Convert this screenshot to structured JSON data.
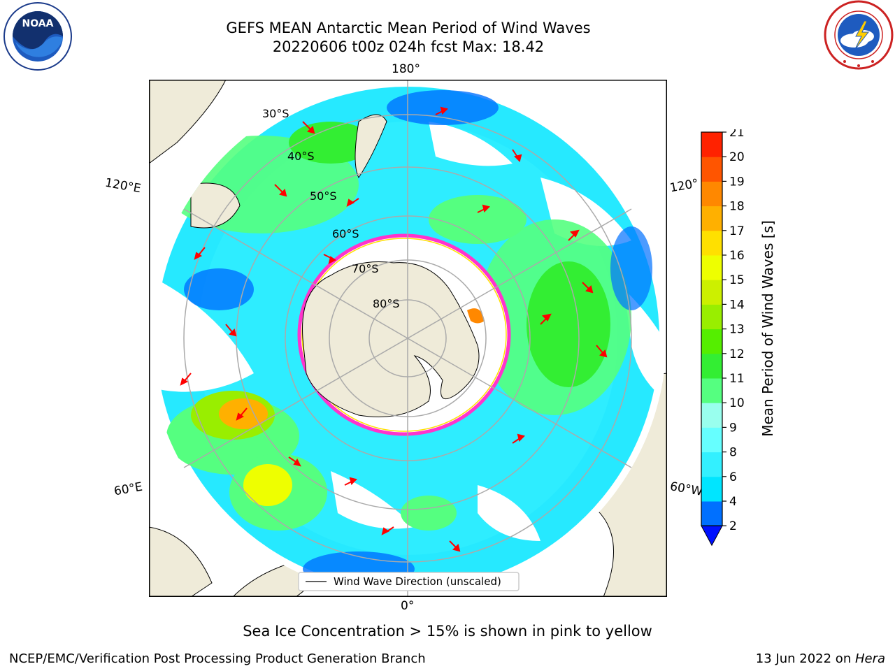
{
  "header": {
    "title_line1": "GEFS MEAN Antarctic Mean Period of Wind Waves",
    "title_line2": "20220606 t00z 024h fcst   Max: 18.42"
  },
  "map": {
    "projection": "south polar stereographic",
    "lon_labels": {
      "top": "180°",
      "bottom": "0°",
      "left_upper": "120°E",
      "left_lower": "60°E",
      "right_upper": "120°",
      "right_lower": "60°W"
    },
    "lat_labels": [
      "30°S",
      "40°S",
      "50°S",
      "60°S",
      "70°S",
      "80°S"
    ],
    "colors": {
      "land": "#efebd9",
      "ocean_no_data": "#ffffff",
      "arrows": "#ff0000",
      "sea_ice": "#ff33cc"
    },
    "legend_label": "Wind Wave Direction (unscaled)"
  },
  "colorbar": {
    "title": "Mean Period of Wind Waves [s]",
    "ticks": [
      "2",
      "4",
      "6",
      "8",
      "9",
      "10",
      "11",
      "12",
      "13",
      "14",
      "15",
      "16",
      "17",
      "18",
      "19",
      "20",
      "21"
    ],
    "colors": [
      "#0070ff",
      "#00e5ff",
      "#33f0ff",
      "#66ffff",
      "#99ffee",
      "#55ff80",
      "#33ee33",
      "#55ee00",
      "#99ee00",
      "#ccf000",
      "#eeff00",
      "#ffe000",
      "#ffb000",
      "#ff8800",
      "#ff5500",
      "#ff2200"
    ],
    "extend_color": "#0010ff"
  },
  "notes": {
    "sea_ice": "Sea Ice Concentration > 15% is shown in pink to yellow"
  },
  "footer": {
    "left": "NCEP/EMC/Verification Post Processing Product Generation Branch",
    "date": "13 Jun 2022 on ",
    "machine": "Hera"
  },
  "logos": {
    "noaa_text": "NOAA"
  }
}
